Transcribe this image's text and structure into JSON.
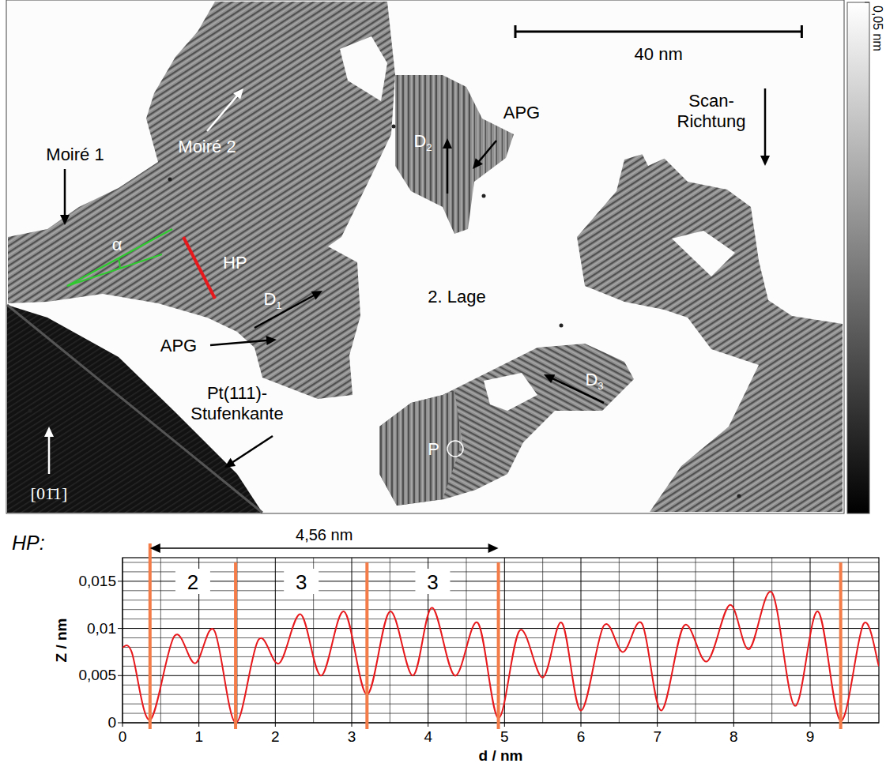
{
  "image": {
    "labels": [
      {
        "text": "Moiré 1"
      },
      {
        "text": "Moiré 2"
      },
      {
        "text": "APG"
      },
      {
        "text": "APG"
      },
      {
        "text": "D",
        "sub": "1"
      },
      {
        "text": "D",
        "sub": "2"
      },
      {
        "text": "D",
        "sub": "3"
      },
      {
        "text": "HP"
      },
      {
        "text": "α"
      },
      {
        "text": "2. Lage"
      },
      {
        "text": "P"
      },
      {
        "lines": [
          "Pt(111)-",
          "Stufenkante"
        ]
      },
      {
        "lines": [
          "Scan-",
          "Richtung"
        ]
      },
      {
        "text": "[01̄1]"
      }
    ],
    "scale_bar": {
      "length": 40,
      "label": "40 nm"
    },
    "width_nm": 117,
    "colorbar": {
      "range": [
        0,
        0.05
      ],
      "ticks": [
        {
          "value": 0.05,
          "label": "0,05 nm"
        }
      ]
    }
  },
  "chart_data": {
    "type": "line",
    "title": "HP:",
    "x_label": "d / nm",
    "y_label": "Z / nm",
    "xlim": [
      0,
      9.9
    ],
    "ylim": [
      0,
      0.0175
    ],
    "xticks": [
      0,
      1,
      2,
      3,
      4,
      5,
      6,
      7,
      8,
      9
    ],
    "yticks": [
      0,
      {
        "value": 0.005,
        "label": "0,005"
      },
      {
        "value": 0.01,
        "label": "0,01"
      },
      {
        "value": 0.015,
        "label": "0,015"
      }
    ],
    "minor_xticks": [
      0.5,
      1.5,
      2.5,
      3.5,
      4.5,
      5.5,
      6.5,
      7.5,
      8.5,
      9.5
    ],
    "minor_yticks": [
      0.001,
      0.002,
      0.003,
      0.004,
      0.006,
      0.007,
      0.008,
      0.009,
      0.011,
      0.012,
      0.013,
      0.014,
      0.016,
      0.017
    ],
    "grid": true,
    "color": "#e8191c",
    "x": [
      0,
      0.12,
      0.36,
      0.68,
      0.95,
      1.2,
      1.48,
      1.78,
      2.05,
      2.33,
      2.6,
      2.9,
      3.2,
      3.5,
      3.8,
      4.05,
      4.35,
      4.65,
      4.92,
      5.2,
      5.5,
      5.75,
      6.0,
      6.3,
      6.55,
      6.8,
      7.05,
      7.35,
      7.65,
      7.95,
      8.2,
      8.5,
      8.8,
      9.1,
      9.4,
      9.7,
      9.9
    ],
    "values": [
      0.008,
      0.0075,
      0.0003,
      0.0092,
      0.0063,
      0.0098,
      0.0,
      0.0088,
      0.0063,
      0.0115,
      0.005,
      0.0118,
      0.003,
      0.0118,
      0.005,
      0.0122,
      0.005,
      0.0106,
      0.0005,
      0.0098,
      0.0048,
      0.0106,
      0.0013,
      0.0103,
      0.0075,
      0.0105,
      0.0013,
      0.0103,
      0.0065,
      0.0125,
      0.0078,
      0.0138,
      0.0018,
      0.0118,
      0.0002,
      0.0105,
      0.006
    ],
    "marker_lines": {
      "x": [
        0.36,
        1.48,
        3.2,
        4.92,
        9.4
      ],
      "color": "#f47c48",
      "labels": [
        "2",
        "3",
        "3"
      ]
    },
    "distance": {
      "from": 0.36,
      "to": 4.92,
      "label": "4,56 nm"
    }
  }
}
